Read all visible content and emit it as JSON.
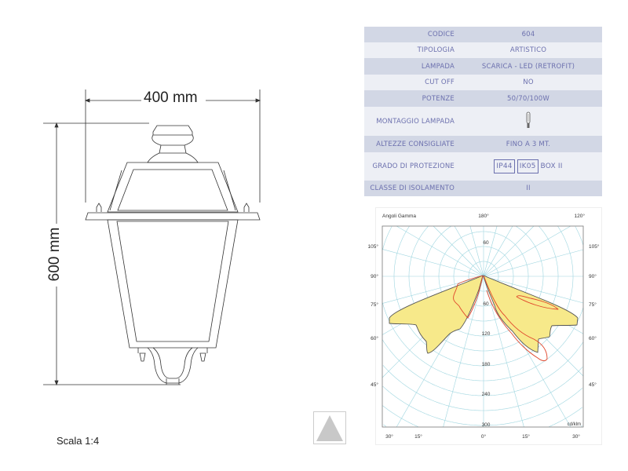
{
  "drawing": {
    "width_label": "400 mm",
    "height_label": "600 mm",
    "scale_label": "Scala 1:4"
  },
  "spec_table": {
    "rows": [
      {
        "label": "CODICE",
        "value": "604"
      },
      {
        "label": "TIPOLOGIA",
        "value": "ARTISTICO"
      },
      {
        "label": "LAMPADA",
        "value": "SCARICA - LED (RETROFIT)"
      },
      {
        "label": "CUT OFF",
        "value": "NO"
      },
      {
        "label": "POTENZE",
        "value": "50/70/100W"
      },
      {
        "label": "MONTAGGIO LAMPADA",
        "value": "",
        "icon": "lamp-bulb-icon"
      },
      {
        "label": "ALTEZZE CONSIGLIATE",
        "value": "FINO A 3 MT."
      },
      {
        "label": "GRADO DI PROTEZIONE",
        "badges": [
          "IP44",
          "IK05"
        ],
        "value": "BOX II"
      },
      {
        "label": "CLASSE DI ISOLAMENTO",
        "value": "II"
      }
    ],
    "text_color": "#6c70ae"
  },
  "polar_chart": {
    "title": "Angoli Gamma",
    "unit": "cd/klm",
    "top_labels": [
      "180°",
      "120°"
    ],
    "side_labels": [
      "105°",
      "90°",
      "75°",
      "60°",
      "45°"
    ],
    "bottom_labels": [
      "30°",
      "15°",
      "0°",
      "15°",
      "30°"
    ],
    "ring_labels": [
      "60",
      "60",
      "120",
      "180",
      "240",
      "300"
    ],
    "fill_color": "#f7e98a",
    "outline_color": "#555555",
    "red_curve_color": "#e0452a",
    "grid_color": "#8fd0dc"
  }
}
